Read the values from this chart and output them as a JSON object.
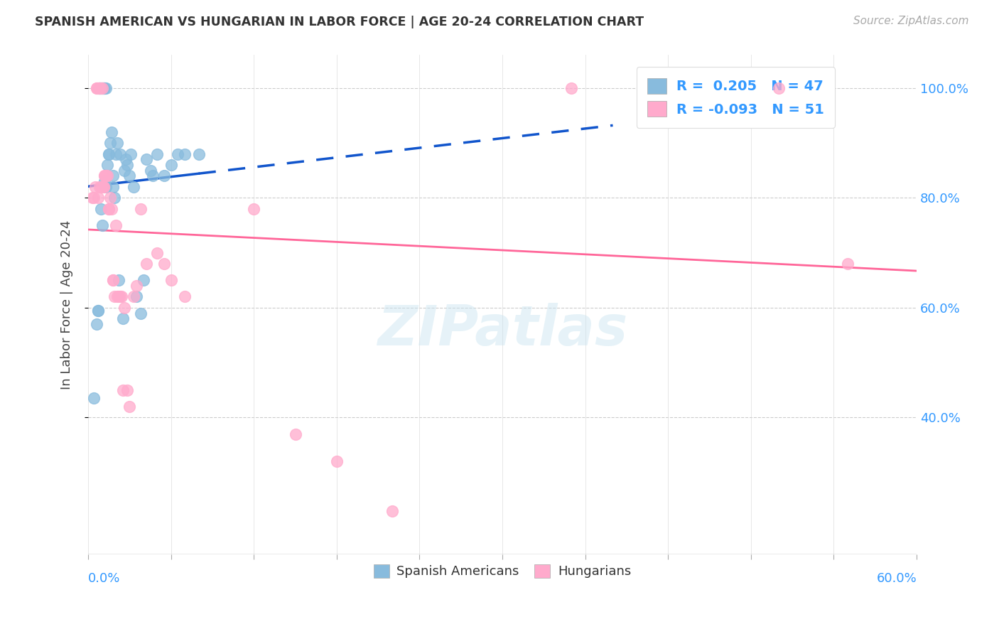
{
  "title": "SPANISH AMERICAN VS HUNGARIAN IN LABOR FORCE | AGE 20-24 CORRELATION CHART",
  "source": "Source: ZipAtlas.com",
  "ylabel": "In Labor Force | Age 20-24",
  "xmin": 0.0,
  "xmax": 0.6,
  "ymin": 0.15,
  "ymax": 1.06,
  "ytick_vals": [
    0.4,
    0.6,
    0.8,
    1.0
  ],
  "ytick_labels": [
    "40.0%",
    "60.0%",
    "80.0%",
    "100.0%"
  ],
  "xtick_vals": [
    0.0,
    0.06,
    0.12,
    0.18,
    0.24,
    0.3,
    0.36,
    0.42,
    0.48,
    0.54,
    0.6
  ],
  "blue_scatter_color": "#88bbdd",
  "pink_scatter_color": "#ffaacc",
  "blue_line_color": "#1155cc",
  "pink_line_color": "#ff6699",
  "blue_label_color": "#3399ff",
  "legend1_label1": "R =  0.205   N = 47",
  "legend1_label2": "R = -0.093   N = 51",
  "legend2_label1": "Spanish Americans",
  "legend2_label2": "Hungarians",
  "watermark": "ZIPatlas",
  "sa_x": [
    0.004,
    0.006,
    0.007,
    0.007,
    0.008,
    0.008,
    0.009,
    0.009,
    0.01,
    0.01,
    0.011,
    0.011,
    0.012,
    0.012,
    0.013,
    0.013,
    0.014,
    0.015,
    0.015,
    0.016,
    0.017,
    0.018,
    0.018,
    0.019,
    0.02,
    0.021,
    0.022,
    0.023,
    0.025,
    0.026,
    0.027,
    0.028,
    0.03,
    0.031,
    0.033,
    0.035,
    0.038,
    0.04,
    0.042,
    0.045,
    0.047,
    0.05,
    0.055,
    0.06,
    0.065,
    0.07,
    0.08
  ],
  "sa_y": [
    0.435,
    0.57,
    0.595,
    0.595,
    1.0,
    1.0,
    1.0,
    0.78,
    1.0,
    0.75,
    1.0,
    1.0,
    1.0,
    0.83,
    1.0,
    0.82,
    0.86,
    0.88,
    0.88,
    0.9,
    0.92,
    0.82,
    0.84,
    0.8,
    0.88,
    0.9,
    0.65,
    0.88,
    0.58,
    0.85,
    0.87,
    0.86,
    0.84,
    0.88,
    0.82,
    0.62,
    0.59,
    0.65,
    0.87,
    0.85,
    0.84,
    0.88,
    0.84,
    0.86,
    0.88,
    0.88,
    0.88
  ],
  "hu_x": [
    0.003,
    0.004,
    0.005,
    0.006,
    0.006,
    0.007,
    0.007,
    0.008,
    0.008,
    0.009,
    0.009,
    0.01,
    0.01,
    0.011,
    0.011,
    0.012,
    0.012,
    0.013,
    0.013,
    0.014,
    0.015,
    0.015,
    0.016,
    0.017,
    0.018,
    0.018,
    0.019,
    0.02,
    0.021,
    0.022,
    0.023,
    0.024,
    0.025,
    0.026,
    0.028,
    0.03,
    0.033,
    0.035,
    0.038,
    0.042,
    0.05,
    0.055,
    0.06,
    0.07,
    0.12,
    0.15,
    0.18,
    0.22,
    0.35,
    0.5,
    0.55
  ],
  "hu_y": [
    0.8,
    0.8,
    0.82,
    1.0,
    1.0,
    1.0,
    0.8,
    1.0,
    0.82,
    1.0,
    0.82,
    1.0,
    0.82,
    0.82,
    0.82,
    0.84,
    0.84,
    0.84,
    0.84,
    0.84,
    0.78,
    0.78,
    0.8,
    0.78,
    0.65,
    0.65,
    0.62,
    0.75,
    0.62,
    0.62,
    0.62,
    0.62,
    0.45,
    0.6,
    0.45,
    0.42,
    0.62,
    0.64,
    0.78,
    0.68,
    0.7,
    0.68,
    0.65,
    0.62,
    0.78,
    0.37,
    0.32,
    0.23,
    1.0,
    1.0,
    0.68
  ]
}
